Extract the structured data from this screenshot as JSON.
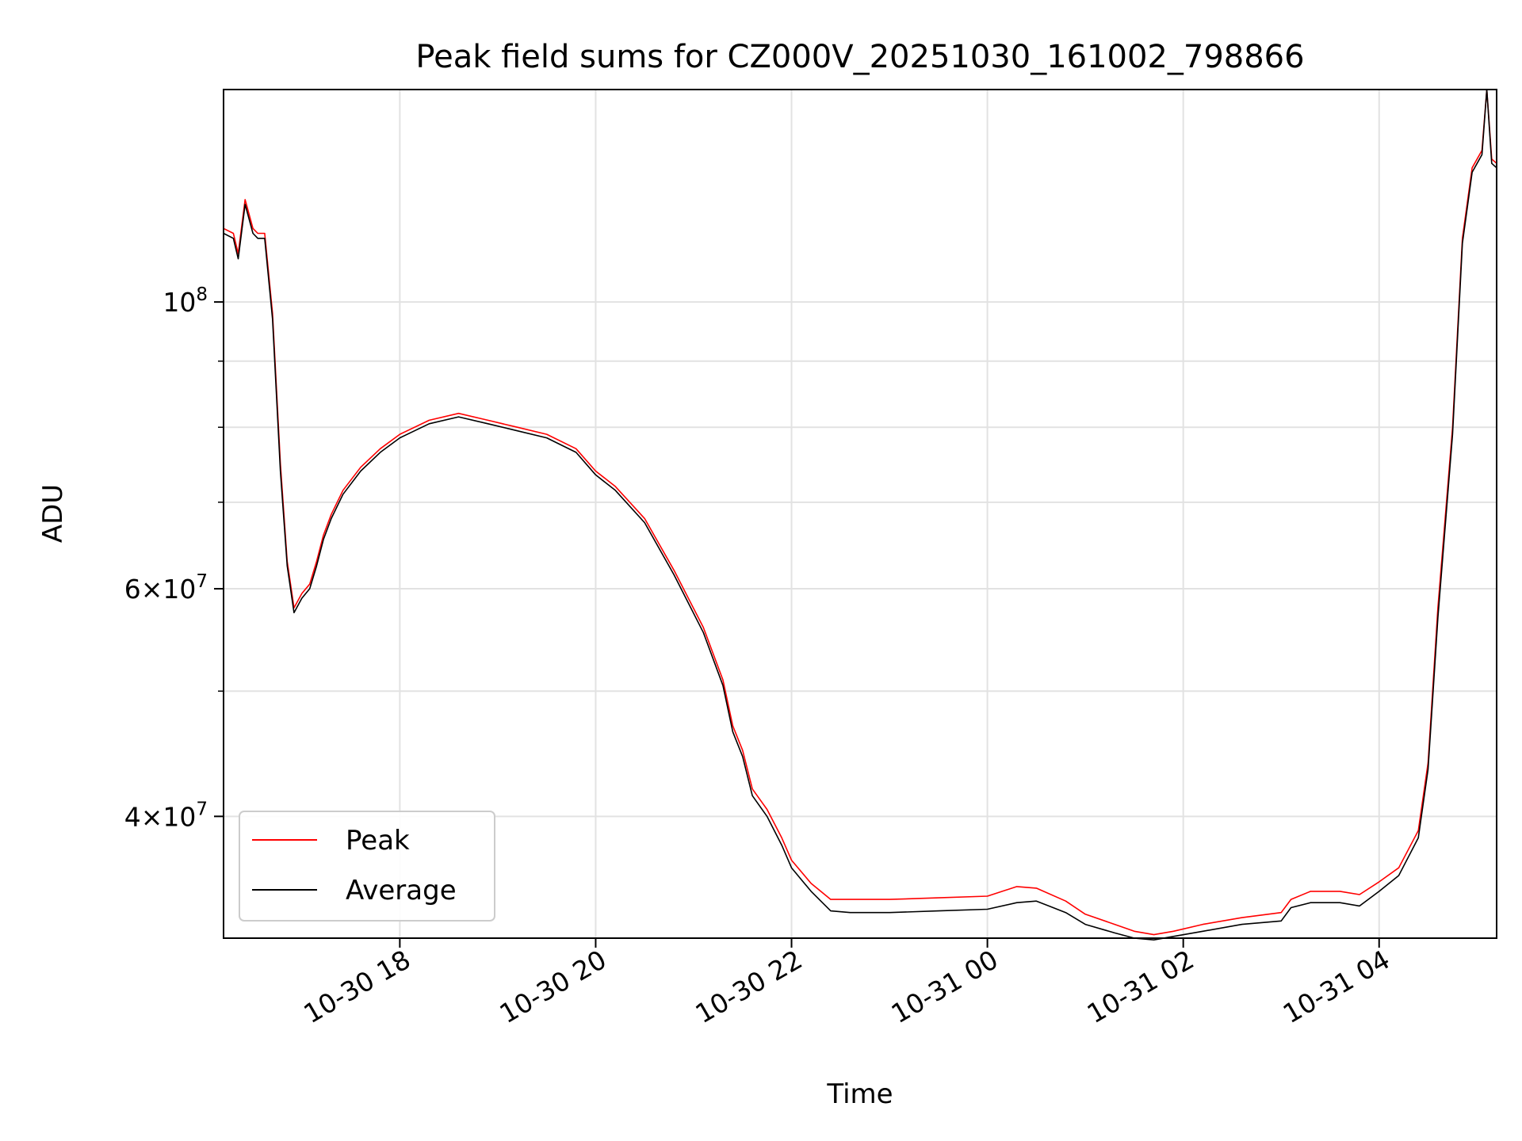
{
  "chart_data": {
    "type": "line",
    "title": "Peak field sums for CZ000V_20251030_161002_798866",
    "xlabel": "Time",
    "ylabel": "ADU",
    "x_unit": "hours since 10-30 16:00",
    "xlim": [
      0.2,
      13.2
    ],
    "ylim": [
      32200000,
      146000000
    ],
    "yscale": "log",
    "grid": true,
    "legend_position": "lower-left",
    "x_ticks": [
      {
        "value": 2,
        "label": "10-30 18"
      },
      {
        "value": 4,
        "label": "10-30 20"
      },
      {
        "value": 6,
        "label": "10-30 22"
      },
      {
        "value": 8,
        "label": "10-31 00"
      },
      {
        "value": 10,
        "label": "10-31 02"
      },
      {
        "value": 12,
        "label": "10-31 04"
      }
    ],
    "y_major_ticks": [
      {
        "value": 40000000,
        "mantissa": "4",
        "exponent": "7"
      },
      {
        "value": 60000000,
        "mantissa": "6",
        "exponent": "7"
      },
      {
        "value": 100000000,
        "mantissa": "",
        "exponent": "8"
      }
    ],
    "y_minor_grid": [
      50000000,
      70000000,
      80000000,
      90000000
    ],
    "series": [
      {
        "name": "Peak",
        "color": "#ff0000",
        "x": [
          0.2,
          0.3,
          0.35,
          0.42,
          0.5,
          0.55,
          0.62,
          0.7,
          0.78,
          0.85,
          0.92,
          1.0,
          1.08,
          1.15,
          1.22,
          1.3,
          1.42,
          1.6,
          1.8,
          2.0,
          2.3,
          2.6,
          2.9,
          3.2,
          3.5,
          3.8,
          4.0,
          4.2,
          4.5,
          4.8,
          5.1,
          5.3,
          5.4,
          5.5,
          5.6,
          5.75,
          5.9,
          6.0,
          6.2,
          6.4,
          6.6,
          6.7,
          7.0,
          7.5,
          8.0,
          8.3,
          8.5,
          8.8,
          9.0,
          9.3,
          9.5,
          9.7,
          9.9,
          10.2,
          10.6,
          11.0,
          11.1,
          11.3,
          11.6,
          11.8,
          12.0,
          12.2,
          12.4,
          12.5,
          12.6,
          12.75,
          12.85,
          12.95,
          13.05,
          13.1,
          13.15,
          13.2
        ],
        "values": [
          114000000,
          113000000,
          109000000,
          120000000,
          114000000,
          113000000,
          113000000,
          98000000,
          75000000,
          63000000,
          58000000,
          59500000,
          60500000,
          63000000,
          66000000,
          68500000,
          71500000,
          74500000,
          77000000,
          79000000,
          81000000,
          82000000,
          81000000,
          80000000,
          79000000,
          77000000,
          74000000,
          72000000,
          68000000,
          62000000,
          56000000,
          51000000,
          47000000,
          45000000,
          42000000,
          40500000,
          38500000,
          37000000,
          35500000,
          34500000,
          34500000,
          34500000,
          34500000,
          34600000,
          34700000,
          35300000,
          35200000,
          34400000,
          33600000,
          33000000,
          32600000,
          32400000,
          32600000,
          33000000,
          33400000,
          33700000,
          34500000,
          35000000,
          35000000,
          34800000,
          35600000,
          36500000,
          39000000,
          44000000,
          58000000,
          80000000,
          112000000,
          127000000,
          131000000,
          146000000,
          129000000,
          128000000
        ]
      },
      {
        "name": "Average",
        "color": "#000000",
        "x": [
          0.2,
          0.3,
          0.35,
          0.42,
          0.5,
          0.55,
          0.62,
          0.7,
          0.78,
          0.85,
          0.92,
          1.0,
          1.08,
          1.15,
          1.22,
          1.3,
          1.42,
          1.6,
          1.8,
          2.0,
          2.3,
          2.6,
          2.9,
          3.2,
          3.5,
          3.8,
          4.0,
          4.2,
          4.5,
          4.8,
          5.1,
          5.3,
          5.4,
          5.5,
          5.6,
          5.75,
          5.9,
          6.0,
          6.2,
          6.4,
          6.6,
          6.7,
          7.0,
          7.5,
          8.0,
          8.3,
          8.5,
          8.8,
          9.0,
          9.3,
          9.5,
          9.7,
          9.9,
          10.2,
          10.6,
          11.0,
          11.1,
          11.3,
          11.6,
          11.8,
          12.0,
          12.2,
          12.4,
          12.5,
          12.6,
          12.75,
          12.85,
          12.95,
          13.05,
          13.1,
          13.15,
          13.2
        ],
        "values": [
          113000000,
          112000000,
          108000000,
          119000000,
          113000000,
          112000000,
          112000000,
          97000000,
          74000000,
          62500000,
          57500000,
          59000000,
          60000000,
          62500000,
          65500000,
          68000000,
          71000000,
          74000000,
          76500000,
          78500000,
          80500000,
          81500000,
          80500000,
          79500000,
          78500000,
          76500000,
          73500000,
          71500000,
          67500000,
          61500000,
          55500000,
          50500000,
          46500000,
          44500000,
          41500000,
          40000000,
          38000000,
          36500000,
          35000000,
          33800000,
          33700000,
          33700000,
          33700000,
          33800000,
          33900000,
          34300000,
          34400000,
          33700000,
          33000000,
          32500000,
          32200000,
          32100000,
          32300000,
          32600000,
          33000000,
          33200000,
          34000000,
          34300000,
          34300000,
          34100000,
          35000000,
          36000000,
          38500000,
          43500000,
          57000000,
          79000000,
          111000000,
          126000000,
          130000000,
          146000000,
          128000000,
          127000000
        ]
      }
    ]
  }
}
